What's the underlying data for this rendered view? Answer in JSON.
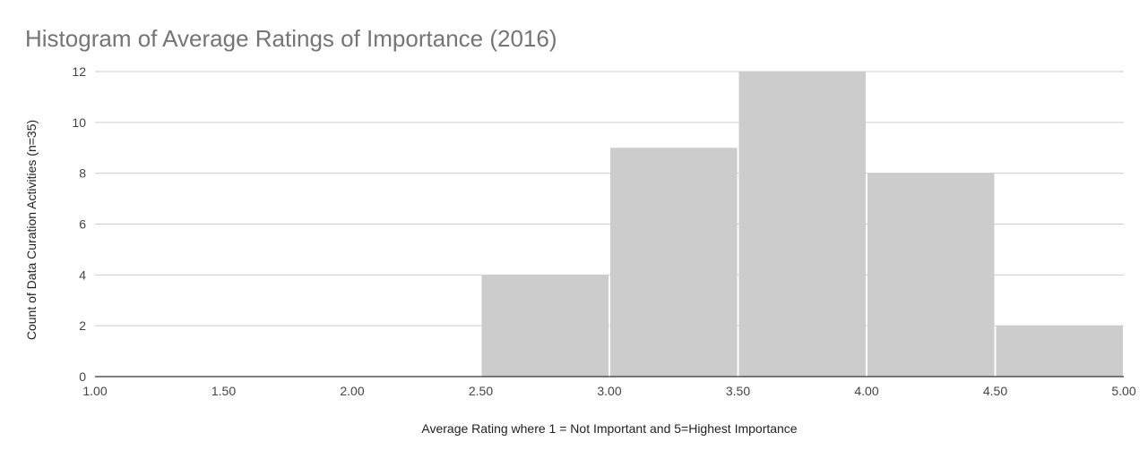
{
  "chart_data": {
    "type": "bar",
    "title": "Histogram of Average Ratings of Importance (2016)",
    "xlabel": "Average Rating where 1 = Not Important and 5=Highest Importance",
    "ylabel": "Count of Data Curation Activities (n=35)",
    "xlim": [
      1.0,
      5.0
    ],
    "ylim": [
      0,
      12
    ],
    "x_ticks": [
      "1.00",
      "1.50",
      "2.00",
      "2.50",
      "3.00",
      "3.50",
      "4.00",
      "4.50",
      "5.00"
    ],
    "y_ticks": [
      "0",
      "2",
      "4",
      "6",
      "8",
      "10",
      "12"
    ],
    "bins": [
      {
        "start": 2.5,
        "end": 3.0,
        "count": 4
      },
      {
        "start": 3.0,
        "end": 3.5,
        "count": 9
      },
      {
        "start": 3.5,
        "end": 4.0,
        "count": 12
      },
      {
        "start": 4.0,
        "end": 4.5,
        "count": 8
      },
      {
        "start": 4.5,
        "end": 5.0,
        "count": 2
      }
    ],
    "grid": true,
    "legend": "none",
    "bar_color": "#cccccc",
    "grid_color": "#cccccc",
    "axis_color": "#333333"
  }
}
